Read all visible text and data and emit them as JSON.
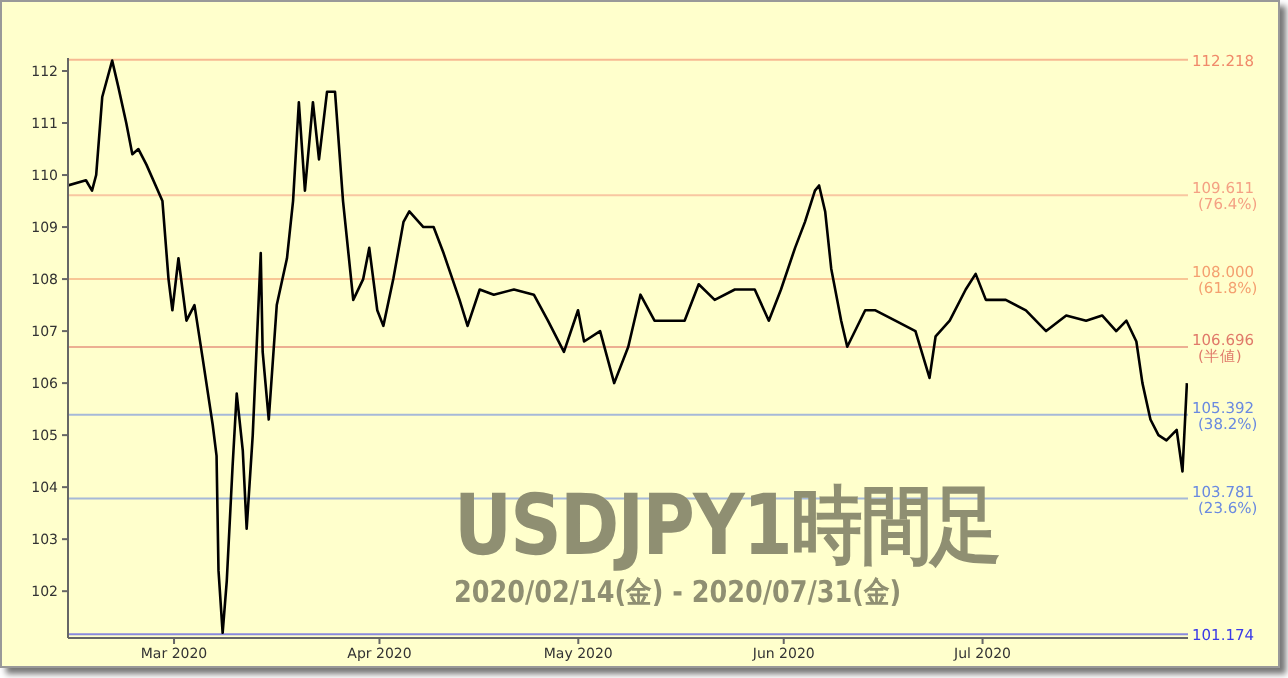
{
  "chart_data": {
    "type": "line",
    "title": "USDJPY1時間足",
    "subtitle": "2020/02/14(金) - 2020/07/31(金)",
    "xlim": [
      "2020-02-14",
      "2020-08-01"
    ],
    "xticks": [
      {
        "value": "2020-03-01",
        "label": "Mar 2020"
      },
      {
        "value": "2020-04-01",
        "label": "Apr 2020"
      },
      {
        "value": "2020-05-01",
        "label": "May 2020"
      },
      {
        "value": "2020-06-01",
        "label": "Jun 2020"
      },
      {
        "value": "2020-07-01",
        "label": "Jul 2020"
      }
    ],
    "ylim": [
      101.1,
      112.25
    ],
    "yticks": [
      102,
      103,
      104,
      105,
      106,
      107,
      108,
      109,
      110,
      111,
      112
    ],
    "grid": false,
    "legend": false,
    "marker": "none",
    "line_style": "solid",
    "x": [
      "2020-02-14T00:00",
      "2020-02-16T17:00",
      "2020-02-17T15:00",
      "2020-02-18T06:00",
      "2020-02-19T04:00",
      "2020-02-20T16:00",
      "2020-02-21T14:00",
      "2020-02-22T19:00",
      "2020-02-23T17:00",
      "2020-02-24T15:00",
      "2020-02-25T20:00",
      "2020-02-28T06:00",
      "2020-02-29T04:00",
      "2020-02-29T18:00",
      "2020-03-01T16:00",
      "2020-03-02T21:00",
      "2020-03-04T02:00",
      "2020-03-05T07:00",
      "2020-03-06T20:00",
      "2020-03-07T10:00",
      "2020-03-07T17:00",
      "2020-03-08T08:00",
      "2020-03-08T23:00",
      "2020-03-09T20:00",
      "2020-03-10T11:00",
      "2020-03-11T09:00",
      "2020-03-11T23:00",
      "2020-03-12T21:00",
      "2020-03-14T02:00",
      "2020-03-14T09:00",
      "2020-03-15T07:00",
      "2020-03-16T12:00",
      "2020-03-18T01:00",
      "2020-03-18T23:00",
      "2020-03-19T20:00",
      "2020-03-20T18:00",
      "2020-03-21T23:00",
      "2020-03-22T21:00",
      "2020-03-24T02:00",
      "2020-03-25T07:00",
      "2020-03-26T12:00",
      "2020-03-28T01:00",
      "2020-03-29T13:00",
      "2020-03-30T11:00",
      "2020-03-31T16:00",
      "2020-04-01T14:00",
      "2020-04-03T02:00",
      "2020-04-04T15:00",
      "2020-04-05T12:00",
      "2020-04-07T15:00",
      "2020-04-09T04:00",
      "2020-04-10T16:00",
      "2020-04-13T02:00",
      "2020-04-14T07:00",
      "2020-04-16T03:00",
      "2020-04-18T06:00",
      "2020-04-21T07:00",
      "2020-04-24T07:00",
      "2020-04-26T10:00",
      "2020-04-28T20:00",
      "2020-04-30T23:00",
      "2020-05-01T21:00",
      "2020-05-04T07:00",
      "2020-05-06T10:00",
      "2020-05-08T13:00",
      "2020-05-10T09:00",
      "2020-05-12T12:00",
      "2020-05-14T00:00",
      "2020-05-17T01:00",
      "2020-05-19T04:00",
      "2020-05-21T14:00",
      "2020-05-24T15:00",
      "2020-05-27T15:00",
      "2020-05-29T18:00",
      "2020-05-31T14:00",
      "2020-06-02T17:00",
      "2020-06-04T05:00",
      "2020-06-05T17:00",
      "2020-06-06T08:00",
      "2020-06-07T06:00",
      "2020-06-08T04:00",
      "2020-06-09T16:00",
      "2020-06-10T14:00",
      "2020-06-13T07:00",
      "2020-06-14T20:00",
      "2020-06-17T20:00",
      "2020-06-20T21:00",
      "2020-06-23T00:00",
      "2020-06-23T22:00",
      "2020-06-26T01:00",
      "2020-06-28T11:00",
      "2020-06-29T23:00",
      "2020-07-01T12:00",
      "2020-07-04T12:00",
      "2020-07-07T13:00",
      "2020-07-10T14:00",
      "2020-07-13T15:00",
      "2020-07-16T15:00",
      "2020-07-19T01:00",
      "2020-07-21T04:00",
      "2020-07-22T17:00",
      "2020-07-24T05:00",
      "2020-07-25T03:00",
      "2020-07-26T08:00",
      "2020-07-27T13:00",
      "2020-07-28T18:00",
      "2020-07-30T07:00",
      "2020-07-31T04:00",
      "2020-07-31T20:00"
    ],
    "series": [
      {
        "color": "#000000",
        "values": [
          109.8,
          109.9,
          109.7,
          110.0,
          111.5,
          112.2,
          111.7,
          111.0,
          110.4,
          110.5,
          110.2,
          109.5,
          108.0,
          107.4,
          108.4,
          107.2,
          107.5,
          106.5,
          105.2,
          104.6,
          102.4,
          101.2,
          102.2,
          104.4,
          105.8,
          104.7,
          103.2,
          105.0,
          108.5,
          106.6,
          105.3,
          107.5,
          108.4,
          109.5,
          111.4,
          109.7,
          111.4,
          110.3,
          111.6,
          111.6,
          109.5,
          107.6,
          108.0,
          108.6,
          107.4,
          107.1,
          108.0,
          109.1,
          109.3,
          109.0,
          109.0,
          108.5,
          107.6,
          107.1,
          107.8,
          107.7,
          107.8,
          107.7,
          107.2,
          106.6,
          107.4,
          106.8,
          107.0,
          106.0,
          106.7,
          107.7,
          107.2,
          107.2,
          107.2,
          107.9,
          107.6,
          107.8,
          107.8,
          107.2,
          107.8,
          108.6,
          109.1,
          109.7,
          109.8,
          109.3,
          108.2,
          107.2,
          106.7,
          107.4,
          107.4,
          107.2,
          107.0,
          106.1,
          106.9,
          107.2,
          107.8,
          108.1,
          107.6,
          107.6,
          107.4,
          107.0,
          107.3,
          107.2,
          107.3,
          107.0,
          107.2,
          106.8,
          106.0,
          105.3,
          105.0,
          104.9,
          105.1,
          104.3,
          106.0
        ]
      }
    ],
    "ref_lines": [
      {
        "axis": "y",
        "value": 112.218,
        "label": "112.218",
        "color": "#f08a6a"
      },
      {
        "axis": "y",
        "value": 109.611,
        "label": "109.611 (76.4%)",
        "color": "#f4a184"
      },
      {
        "axis": "y",
        "value": 108.0,
        "label": "108.000 (61.8%)",
        "color": "#f4a070"
      },
      {
        "axis": "y",
        "value": 106.696,
        "label": "106.696 (半値)",
        "color": "#e07a6a"
      },
      {
        "axis": "y",
        "value": 105.392,
        "label": "105.392 (38.2%)",
        "color": "#6a8ae0"
      },
      {
        "axis": "y",
        "value": 103.781,
        "label": "103.781 (23.6%)",
        "color": "#6a8ae0"
      },
      {
        "axis": "y",
        "value": 101.174,
        "label": "101.174",
        "color": "#3a3ae8"
      }
    ]
  }
}
